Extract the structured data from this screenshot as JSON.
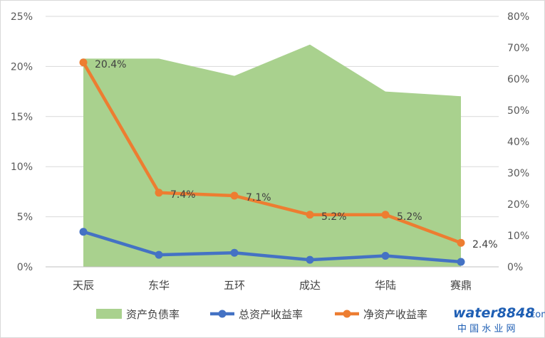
{
  "chart_data": {
    "type": "area",
    "categories": [
      "天辰",
      "东华",
      "五环",
      "成达",
      "华陆",
      "赛鼎"
    ],
    "series": [
      {
        "name": "资产负债率",
        "type": "area",
        "axis": "right",
        "color": "#a9d18e",
        "values": [
          66.5,
          66.5,
          61,
          71,
          56,
          54.5
        ]
      },
      {
        "name": "总资产收益率",
        "type": "line",
        "axis": "left",
        "color": "#4472c4",
        "values": [
          3.5,
          1.2,
          1.4,
          0.7,
          1.1,
          0.5
        ]
      },
      {
        "name": "净资产收益率",
        "type": "line",
        "axis": "left",
        "color": "#ed7d31",
        "values": [
          20.4,
          7.4,
          7.1,
          5.2,
          5.2,
          2.4
        ],
        "data_labels": [
          "20.4%",
          "7.4%",
          "7.1%",
          "5.2%",
          "5.2%",
          "2.4%"
        ]
      }
    ],
    "y_left": {
      "min": 0,
      "max": 25,
      "ticks": [
        "0%",
        "5%",
        "10%",
        "15%",
        "20%",
        "25%"
      ]
    },
    "y_right": {
      "min": 0,
      "max": 80,
      "ticks": [
        "0%",
        "10%",
        "20%",
        "30%",
        "40%",
        "50%",
        "60%",
        "70%",
        "80%"
      ]
    },
    "grid": true,
    "legend": "bottom"
  },
  "watermark": {
    "brand": "water8848",
    "tld": ".com",
    "tagline": "中 国 水 业 网"
  }
}
